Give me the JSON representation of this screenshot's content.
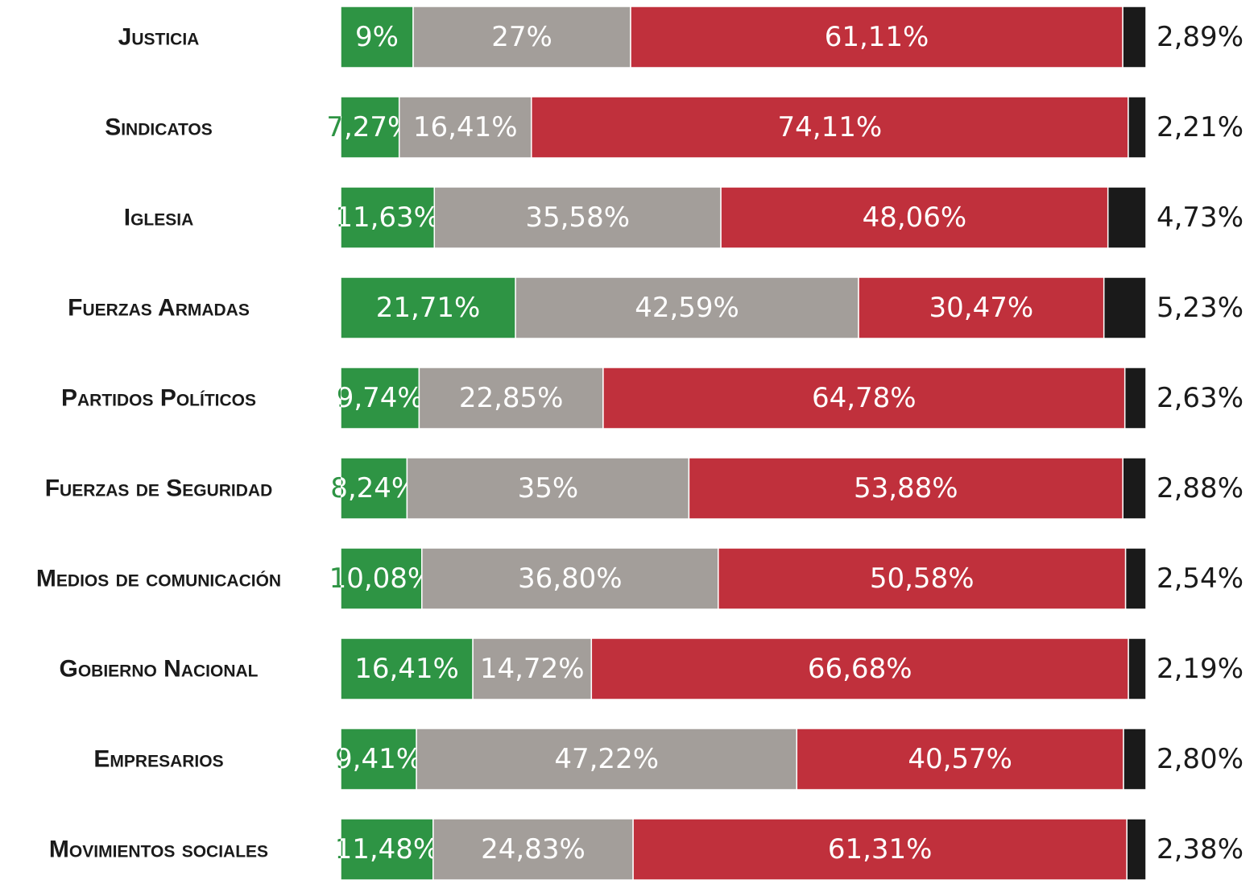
{
  "chart_data": {
    "type": "stacked-bar-horizontal",
    "categories": [
      "Justicia",
      "Sindicatos",
      "Iglesia",
      "Fuerzas Armadas",
      "Partidos Políticos",
      "Fuerzas de Seguridad",
      "Medios de comunicación",
      "Gobierno Nacional",
      "Empresarios",
      "Movimientos sociales"
    ],
    "series": [
      {
        "color": "#2e9444",
        "values": [
          9,
          7.27,
          11.63,
          21.71,
          9.74,
          8.24,
          10.08,
          16.41,
          9.41,
          11.48
        ],
        "value_labels": [
          "9%",
          "7,27%",
          "11,63%",
          "21,71%",
          "9,74%",
          "8,24%",
          "10,08%",
          "16,41%",
          "9,41%",
          "11,48%"
        ]
      },
      {
        "color": "#a39e9a",
        "values": [
          27,
          16.41,
          35.58,
          42.59,
          22.85,
          35,
          36.8,
          14.72,
          47.22,
          24.83
        ],
        "value_labels": [
          "27%",
          "16,41%",
          "35,58%",
          "42,59%",
          "22,85%",
          "35%",
          "36,80%",
          "14,72%",
          "47,22%",
          "24,83%"
        ]
      },
      {
        "color": "#c0303c",
        "values": [
          61.11,
          74.11,
          48.06,
          30.47,
          64.78,
          53.88,
          50.58,
          66.68,
          40.57,
          61.31
        ],
        "value_labels": [
          "61,11%",
          "74,11%",
          "48,06%",
          "30,47%",
          "64,78%",
          "53,88%",
          "50,58%",
          "66,68%",
          "40,57%",
          "61,31%"
        ]
      },
      {
        "color": "#1a1a1a",
        "values": [
          2.89,
          2.21,
          4.73,
          5.23,
          2.63,
          2.88,
          2.54,
          2.19,
          2.8,
          2.38
        ],
        "value_labels": [
          "2,89%",
          "2,21%",
          "4,73%",
          "5,23%",
          "2,63%",
          "2,88%",
          "2,54%",
          "2,19%",
          "2,80%",
          "2,38%"
        ]
      }
    ]
  }
}
